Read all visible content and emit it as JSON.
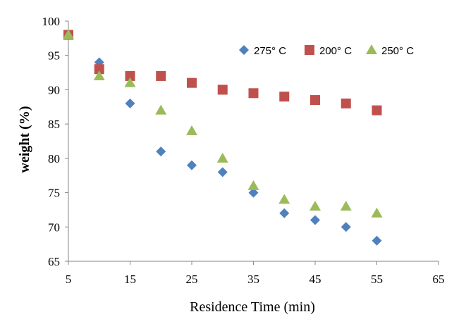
{
  "chart_data": {
    "type": "scatter",
    "title": "",
    "xlabel": "Residence Time (min)",
    "ylabel": "weight (%)",
    "xlim": [
      5,
      65
    ],
    "ylim": [
      65,
      100
    ],
    "xticks": [
      5,
      15,
      25,
      35,
      45,
      55,
      65
    ],
    "yticks": [
      65,
      70,
      75,
      80,
      85,
      90,
      95,
      100
    ],
    "grid": false,
    "legend_position": "top-right",
    "series": [
      {
        "name": "275° C",
        "legend_label": "275° C",
        "marker": "diamond",
        "color": "#4f81bd",
        "x": [
          5,
          10,
          15,
          20,
          25,
          30,
          35,
          40,
          45,
          50,
          55
        ],
        "y": [
          98,
          94,
          88,
          81,
          79,
          78,
          75,
          72,
          71,
          70,
          68
        ]
      },
      {
        "name": "200° C",
        "legend_label": "200° C",
        "marker": "square",
        "color": "#c0504d",
        "x": [
          5,
          10,
          15,
          20,
          25,
          30,
          35,
          40,
          45,
          50,
          55
        ],
        "y": [
          98,
          93,
          92,
          92,
          91,
          90,
          89.5,
          89,
          88.5,
          88,
          87
        ]
      },
      {
        "name": "250° C",
        "legend_label": "250° C",
        "marker": "triangle",
        "color": "#9bbb59",
        "x": [
          5,
          10,
          15,
          20,
          25,
          30,
          35,
          40,
          45,
          50,
          55
        ],
        "y": [
          98,
          92,
          91,
          87,
          84,
          80,
          76,
          74,
          73,
          73,
          72
        ]
      }
    ]
  }
}
